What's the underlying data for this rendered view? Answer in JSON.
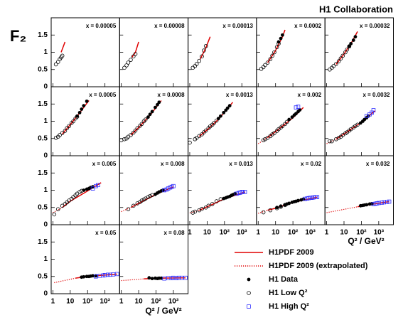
{
  "chart_data": {
    "type": "scatter",
    "title": "H1 Collaboration",
    "ylabel": "F₂",
    "xlabel": "Q² / GeV²",
    "log_x": true,
    "xlim": [
      0.8,
      7000
    ],
    "xticks": [
      1,
      10,
      {
        "value": 100,
        "label": "10²"
      },
      {
        "value": 1000,
        "label": "10³"
      }
    ],
    "ylim": [
      0,
      2
    ],
    "yticks": [
      0,
      0.5,
      1,
      1.5
    ],
    "legend": [
      {
        "name": "H1PDF 2009",
        "color": "#e00000"
      },
      {
        "name": "H1PDF 2009 (extrapolated)",
        "color": "#e00000"
      },
      {
        "name": "H1 Data",
        "color": "#000000"
      },
      {
        "name": "H1 Low Q²",
        "color": "#000000"
      },
      {
        "name": "H1 High Q²",
        "color": "#3030ff"
      }
    ],
    "panels": [
      {
        "label": "x = 0.00005",
        "curve": {
          "q2": [
            3,
            5
          ],
          "f2": [
            1.0,
            1.3
          ]
        },
        "low": {
          "q2": [
            1.5,
            2,
            2.5,
            3,
            3.5
          ],
          "f2": [
            0.65,
            0.72,
            0.8,
            0.85,
            0.9
          ]
        }
      },
      {
        "label": "x = 0.00008",
        "curve": {
          "q2": [
            4,
            6.5,
            10
          ],
          "f2": [
            0.85,
            1.0,
            1.3
          ]
        },
        "low": {
          "q2": [
            1.5,
            2,
            2.5,
            3.5,
            5,
            6.5
          ],
          "f2": [
            0.55,
            0.62,
            0.7,
            0.78,
            0.88,
            0.95
          ]
        }
      },
      {
        "label": "x = 0.00013",
        "curve": {
          "q2": [
            4,
            8,
            15
          ],
          "f2": [
            0.8,
            1.1,
            1.45
          ]
        },
        "low": {
          "q2": [
            1.5,
            2,
            2.5,
            3.5,
            5,
            6.5,
            8.5
          ],
          "f2": [
            0.55,
            0.6,
            0.66,
            0.75,
            0.88,
            1.05,
            1.18
          ]
        }
      },
      {
        "label": "x = 0.0002",
        "curve": {
          "q2": [
            3.5,
            10,
            25,
            35
          ],
          "f2": [
            0.7,
            1.05,
            1.45,
            1.65
          ]
        },
        "low": {
          "q2": [
            1.5,
            2,
            2.5,
            3.5,
            5,
            6.5,
            8.5,
            12,
            15
          ],
          "f2": [
            0.52,
            0.57,
            0.63,
            0.7,
            0.8,
            0.9,
            1.0,
            1.15,
            1.25
          ]
        },
        "data": {
          "q2": [
            15,
            20,
            25
          ],
          "f2": [
            1.3,
            1.4,
            1.5
          ]
        }
      },
      {
        "label": "x = 0.00032",
        "curve": {
          "q2": [
            3.5,
            10,
            25,
            60
          ],
          "f2": [
            0.65,
            0.95,
            1.25,
            1.6
          ]
        },
        "low": {
          "q2": [
            1.5,
            2,
            2.5,
            3.5,
            5,
            6.5,
            8.5,
            12,
            15,
            20
          ],
          "f2": [
            0.5,
            0.55,
            0.6,
            0.66,
            0.74,
            0.82,
            0.9,
            1.0,
            1.08,
            1.17
          ]
        },
        "data": {
          "q2": [
            20,
            25,
            35,
            45
          ],
          "f2": [
            1.18,
            1.25,
            1.35,
            1.45
          ]
        }
      },
      {
        "label": "x = 0.0005",
        "curve": {
          "q2": [
            3.5,
            10,
            30,
            100,
            120
          ],
          "f2": [
            0.63,
            0.9,
            1.2,
            1.55,
            1.6
          ]
        },
        "low": {
          "q2": [
            1.5,
            2,
            2.5,
            3.5,
            5,
            6.5,
            8.5,
            12,
            15,
            20,
            25
          ],
          "f2": [
            0.52,
            0.55,
            0.6,
            0.66,
            0.72,
            0.8,
            0.86,
            0.95,
            1.0,
            1.08,
            1.13
          ]
        },
        "data": {
          "q2": [
            25,
            35,
            45,
            60,
            90
          ],
          "f2": [
            1.15,
            1.25,
            1.35,
            1.45,
            1.58
          ]
        }
      },
      {
        "label": "x = 0.0008",
        "curve": {
          "q2": [
            3.5,
            10,
            50,
            200
          ],
          "f2": [
            0.6,
            0.82,
            1.2,
            1.6
          ]
        },
        "low": {
          "q2": [
            1,
            1.5,
            2,
            2.5,
            3.5,
            5,
            6.5,
            8.5,
            12,
            15,
            20,
            25
          ],
          "f2": [
            0.45,
            0.48,
            0.5,
            0.55,
            0.6,
            0.67,
            0.73,
            0.8,
            0.87,
            0.92,
            1.0,
            1.05
          ]
        },
        "data": {
          "q2": [
            35,
            45,
            60,
            90,
            120,
            150
          ],
          "f2": [
            1.12,
            1.2,
            1.28,
            1.4,
            1.48,
            1.55
          ]
        }
      },
      {
        "label": "x = 0.0013",
        "curve": {
          "q2": [
            3.5,
            10,
            50,
            300
          ],
          "f2": [
            0.56,
            0.75,
            1.08,
            1.55
          ]
        },
        "low": {
          "q2": [
            1,
            2,
            2.5,
            3.5,
            5,
            6.5,
            8.5,
            12,
            15,
            20,
            25,
            35
          ],
          "f2": [
            0.38,
            0.48,
            0.52,
            0.57,
            0.62,
            0.68,
            0.73,
            0.8,
            0.85,
            0.9,
            0.95,
            1.02
          ]
        },
        "data": {
          "q2": [
            45,
            60,
            90,
            120,
            150,
            200
          ],
          "f2": [
            1.08,
            1.15,
            1.25,
            1.32,
            1.38,
            1.45
          ]
        }
      },
      {
        "label": "x = 0.002",
        "curve": {
          "q2": [
            3.5,
            10,
            100,
            400
          ],
          "f2": [
            0.53,
            0.7,
            1.1,
            1.4
          ]
        },
        "extrap": {
          "q2": [
            1,
            3.5
          ],
          "f2": [
            0.35,
            0.53
          ]
        },
        "low": {
          "q2": [
            2,
            2.5,
            3.5,
            5,
            6.5,
            8.5,
            12,
            15,
            20,
            25,
            35,
            45
          ],
          "f2": [
            0.45,
            0.48,
            0.52,
            0.57,
            0.62,
            0.66,
            0.72,
            0.77,
            0.82,
            0.86,
            0.92,
            0.98
          ]
        },
        "data": {
          "q2": [
            60,
            90,
            120,
            150,
            200,
            250
          ],
          "f2": [
            1.05,
            1.12,
            1.18,
            1.22,
            1.28,
            1.33
          ]
        },
        "high": {
          "q2": [
            150,
            200
          ],
          "f2": [
            1.4,
            1.42
          ]
        }
      },
      {
        "label": "x = 0.0032",
        "curve": {
          "q2": [
            3.5,
            10,
            100,
            600
          ],
          "f2": [
            0.48,
            0.63,
            0.97,
            1.3
          ]
        },
        "extrap": {
          "q2": [
            1,
            3.5
          ],
          "f2": [
            0.35,
            0.48
          ]
        },
        "low": {
          "q2": [
            1.5,
            2,
            3.5,
            5,
            6.5,
            8.5,
            12,
            15,
            20,
            25,
            35,
            45,
            60
          ],
          "f2": [
            0.42,
            0.42,
            0.48,
            0.52,
            0.55,
            0.6,
            0.65,
            0.68,
            0.73,
            0.77,
            0.82,
            0.86,
            0.9
          ]
        },
        "data": {
          "q2": [
            90,
            120,
            150,
            200,
            250
          ],
          "f2": [
            0.95,
            1.0,
            1.05,
            1.1,
            1.15
          ]
        },
        "high": {
          "q2": [
            200,
            300,
            400,
            500
          ],
          "f2": [
            1.15,
            1.2,
            1.25,
            1.32
          ]
        }
      },
      {
        "label": "x = 0.005",
        "curve": {
          "q2": [
            3.5,
            10,
            100,
            600
          ],
          "f2": [
            0.5,
            0.68,
            0.98,
            1.22
          ]
        },
        "extrap": {
          "q2": [
            1,
            3.5
          ],
          "f2": [
            0.35,
            0.5
          ]
        },
        "low": {
          "q2": [
            1.2,
            2,
            3.5,
            5,
            6.5,
            8.5,
            12,
            15,
            20,
            25,
            35,
            45
          ],
          "f2": [
            0.3,
            0.45,
            0.55,
            0.6,
            0.65,
            0.7,
            0.75,
            0.8,
            0.85,
            0.9,
            0.95,
            0.98
          ]
        },
        "data": {
          "q2": [
            60,
            90,
            120,
            150,
            200
          ],
          "f2": [
            1.0,
            1.03,
            1.05,
            1.08,
            1.1
          ]
        },
        "high": {
          "q2": [
            200,
            300,
            400
          ],
          "f2": [
            1.05,
            1.12,
            1.15
          ]
        }
      },
      {
        "label": "x = 0.008",
        "curve": {
          "q2": [
            3.5,
            10,
            100,
            1000
          ],
          "f2": [
            0.5,
            0.62,
            0.88,
            1.1
          ]
        },
        "extrap": {
          "q2": [
            1,
            3.5
          ],
          "f2": [
            0.38,
            0.5
          ]
        },
        "low": {
          "q2": [
            2.5,
            5,
            8.5,
            12,
            15,
            20,
            25,
            35,
            45,
            60
          ],
          "f2": [
            0.45,
            0.55,
            0.62,
            0.66,
            0.7,
            0.73,
            0.76,
            0.8,
            0.83,
            0.86
          ]
        },
        "data": {
          "q2": [
            90,
            120,
            150,
            200,
            250
          ],
          "f2": [
            0.88,
            0.92,
            0.95,
            0.98,
            1.0
          ]
        },
        "high": {
          "q2": [
            300,
            400,
            500,
            650,
            800,
            1000
          ],
          "f2": [
            1.0,
            1.02,
            1.05,
            1.08,
            1.1,
            1.12
          ]
        }
      },
      {
        "label": "x = 0.013",
        "curve": {
          "q2": [
            3.5,
            10,
            100,
            1500
          ],
          "f2": [
            0.42,
            0.52,
            0.75,
            0.95
          ]
        },
        "extrap": {
          "q2": [
            1,
            3.5
          ],
          "f2": [
            0.34,
            0.42
          ]
        },
        "low": {
          "q2": [
            1.5,
            2,
            3.5,
            5,
            8.5,
            12,
            20,
            35,
            60
          ],
          "f2": [
            0.35,
            0.38,
            0.42,
            0.46,
            0.5,
            0.55,
            0.6,
            0.68,
            0.74
          ]
        },
        "data": {
          "q2": [
            90,
            120,
            150,
            200,
            250,
            300,
            400
          ],
          "f2": [
            0.76,
            0.78,
            0.8,
            0.82,
            0.85,
            0.87,
            0.9
          ]
        },
        "high": {
          "q2": [
            500,
            650,
            800,
            1000,
            1200,
            1500
          ],
          "f2": [
            0.9,
            0.92,
            0.93,
            0.95,
            0.95,
            0.95
          ]
        }
      },
      {
        "label": "x = 0.02",
        "curve": {
          "q2": [
            3.5,
            10,
            100,
            2500
          ],
          "f2": [
            0.42,
            0.48,
            0.65,
            0.8
          ]
        },
        "extrap": {
          "q2": [
            1,
            3.5
          ],
          "f2": [
            0.33,
            0.42
          ]
        },
        "low": {
          "q2": [
            2,
            5,
            12,
            20,
            35
          ],
          "f2": [
            0.36,
            0.42,
            0.48,
            0.52,
            0.57
          ]
        },
        "data": {
          "q2": [
            12,
            20,
            35,
            45,
            60,
            90,
            120,
            150,
            200,
            300,
            400
          ],
          "f2": [
            0.5,
            0.54,
            0.58,
            0.6,
            0.62,
            0.65,
            0.67,
            0.68,
            0.7,
            0.72,
            0.74
          ]
        },
        "high": {
          "q2": [
            500,
            650,
            800,
            1000,
            1200,
            1500,
            2000,
            2500
          ],
          "f2": [
            0.75,
            0.76,
            0.77,
            0.78,
            0.78,
            0.79,
            0.8,
            0.8
          ]
        }
      },
      {
        "label": "x = 0.032",
        "curve": {
          "q2": [
            60,
            200,
            4000
          ],
          "f2": [
            0.52,
            0.57,
            0.67
          ]
        },
        "extrap": {
          "q2": [
            1,
            60
          ],
          "f2": [
            0.35,
            0.52
          ]
        },
        "data": {
          "q2": [
            90,
            120,
            150,
            200,
            300,
            400
          ],
          "f2": [
            0.55,
            0.56,
            0.57,
            0.58,
            0.6,
            0.61
          ]
        },
        "high": {
          "q2": [
            500,
            650,
            800,
            1000,
            1500,
            2000,
            3000,
            4000
          ],
          "f2": [
            0.6,
            0.61,
            0.62,
            0.63,
            0.64,
            0.65,
            0.66,
            0.67
          ]
        }
      },
      {
        "label": "x = 0.05",
        "curve": {
          "q2": [
            20,
            100,
            5000
          ],
          "f2": [
            0.45,
            0.5,
            0.57
          ]
        },
        "extrap": {
          "q2": [
            1.2,
            20
          ],
          "f2": [
            0.32,
            0.45
          ]
        },
        "data": {
          "q2": [
            45,
            60,
            90,
            120,
            150,
            200,
            300
          ],
          "f2": [
            0.48,
            0.49,
            0.5,
            0.5,
            0.51,
            0.52,
            0.52
          ]
        },
        "high": {
          "q2": [
            300,
            500,
            800,
            1000,
            1500,
            2000,
            3000,
            5000
          ],
          "f2": [
            0.5,
            0.52,
            0.53,
            0.54,
            0.55,
            0.55,
            0.56,
            0.57
          ]
        }
      },
      {
        "label": "x = 0.08",
        "curve": {
          "q2": [
            20,
            200,
            5000
          ],
          "f2": [
            0.43,
            0.45,
            0.46
          ]
        },
        "extrap": {
          "q2": [
            1,
            20
          ],
          "f2": [
            0.38,
            0.43
          ]
        },
        "data": {
          "q2": [
            40,
            60,
            90,
            120,
            150,
            200
          ],
          "f2": [
            0.46,
            0.44,
            0.45,
            0.44,
            0.45,
            0.45
          ]
        },
        "high": {
          "q2": [
            300,
            500,
            800,
            1000,
            1500,
            2000,
            3000,
            5000
          ],
          "f2": [
            0.44,
            0.45,
            0.45,
            0.46,
            0.45,
            0.46,
            0.46,
            0.46
          ]
        }
      }
    ]
  }
}
